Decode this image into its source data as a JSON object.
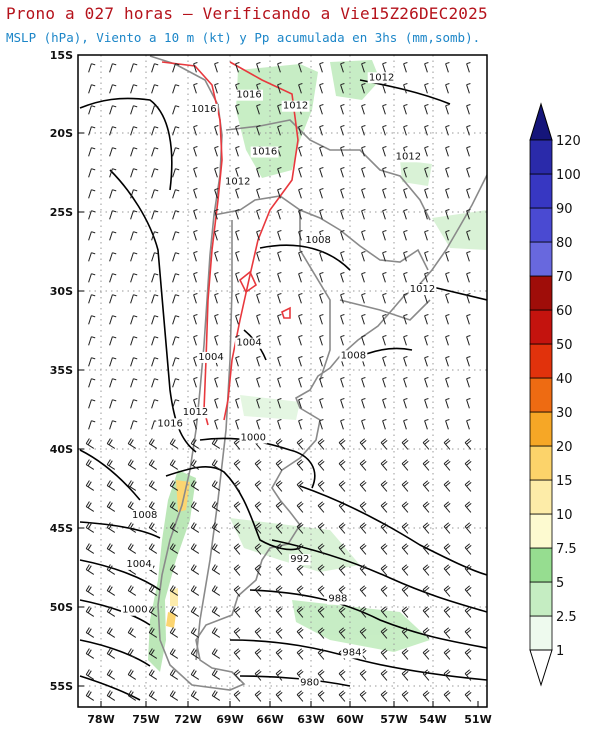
{
  "header": {
    "title": "Prono a 027 horas — Verificando a Vie15Z26DEC2025",
    "subtitle": "MSLP (hPa), Viento a 10 m (kt) y Pp acumulada en 3hs (mm,somb)."
  },
  "map": {
    "lat_labels": [
      "15S",
      "20S",
      "25S",
      "30S",
      "35S",
      "40S",
      "45S",
      "50S",
      "55S"
    ],
    "lon_labels": [
      "78W",
      "75W",
      "72W",
      "69W",
      "66W",
      "63W",
      "60W",
      "57W",
      "54W",
      "51W"
    ],
    "isobar_labels": [
      {
        "text": "1012",
        "lon": -58.1,
        "lat": -16.6
      },
      {
        "text": "1016",
        "lon": -67.5,
        "lat": -17.7
      },
      {
        "text": "1012",
        "lon": -64.2,
        "lat": -18.4
      },
      {
        "text": "1016",
        "lon": -70.7,
        "lat": -18.6
      },
      {
        "text": "1016",
        "lon": -66.4,
        "lat": -21.3
      },
      {
        "text": "1012",
        "lon": -56.2,
        "lat": -21.6
      },
      {
        "text": "1012",
        "lon": -68.3,
        "lat": -23.2
      },
      {
        "text": "1008",
        "lon": -62.6,
        "lat": -26.9
      },
      {
        "text": "1012",
        "lon": -55.2,
        "lat": -30.0
      },
      {
        "text": "1004",
        "lon": -67.5,
        "lat": -33.4
      },
      {
        "text": "1008",
        "lon": -60.1,
        "lat": -34.2
      },
      {
        "text": "1004",
        "lon": -70.2,
        "lat": -34.3
      },
      {
        "text": "1012",
        "lon": -71.3,
        "lat": -37.8
      },
      {
        "text": "1016",
        "lon": -73.1,
        "lat": -38.5
      },
      {
        "text": "1000",
        "lon": -67.2,
        "lat": -39.4
      },
      {
        "text": "1008",
        "lon": -74.9,
        "lat": -44.3
      },
      {
        "text": "1004",
        "lon": -75.3,
        "lat": -47.4
      },
      {
        "text": "992",
        "lon": -63.9,
        "lat": -47.1
      },
      {
        "text": "988",
        "lon": -61.2,
        "lat": -49.6
      },
      {
        "text": "1000",
        "lon": -75.6,
        "lat": -50.3
      },
      {
        "text": "984",
        "lon": -60.2,
        "lat": -53.0
      },
      {
        "text": "980",
        "lon": -63.2,
        "lat": -54.9
      }
    ]
  },
  "colorbar": {
    "labels": [
      "1",
      "2.5",
      "5",
      "7.5",
      "10",
      "15",
      "20",
      "30",
      "40",
      "50",
      "60",
      "70",
      "80",
      "90",
      "100",
      "120"
    ],
    "colors": [
      "#eefaee",
      "#c5edc2",
      "#96dd90",
      "#fdfad0",
      "#fdeca8",
      "#fcd36a",
      "#f6a726",
      "#ee6b12",
      "#e1320c",
      "#c4130e",
      "#9f0d09",
      "#6868de",
      "#4a4ad2",
      "#3737c2",
      "#2a2aaa"
    ],
    "unit": "mm"
  },
  "colors": {
    "title": "#b5121b",
    "subtitle": "#1c86c8",
    "isobar": "#000000",
    "topography": "#e8383d",
    "borders": "#8a8a8a"
  }
}
